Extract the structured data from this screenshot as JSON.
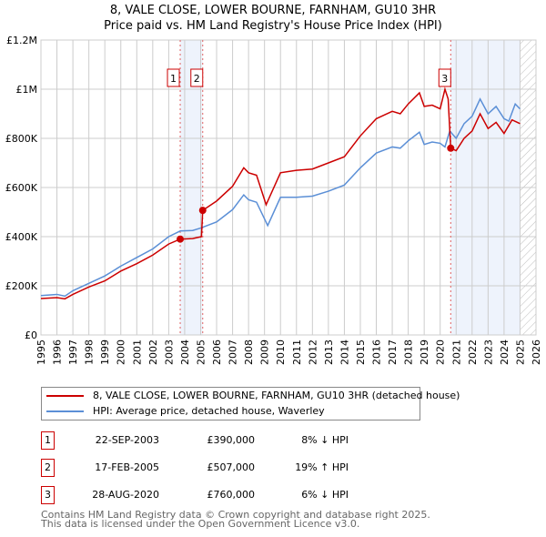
{
  "chart_data": {
    "type": "line",
    "title": "8, VALE CLOSE, LOWER BOURNE, FARNHAM, GU10 3HR",
    "subtitle": "Price paid vs. HM Land Registry's House Price Index (HPI)",
    "xlim": [
      1995,
      2026
    ],
    "ylim": [
      0,
      1200000
    ],
    "yticks": [
      {
        "v": 0,
        "label": "£0"
      },
      {
        "v": 200000,
        "label": "£200K"
      },
      {
        "v": 400000,
        "label": "£400K"
      },
      {
        "v": 600000,
        "label": "£600K"
      },
      {
        "v": 800000,
        "label": "£800K"
      },
      {
        "v": 1000000,
        "label": "£1M"
      },
      {
        "v": 1200000,
        "label": "£1.2M"
      }
    ],
    "xticks": [
      "1995",
      "1996",
      "1997",
      "1998",
      "1999",
      "2000",
      "2001",
      "2002",
      "2003",
      "2004",
      "2005",
      "2006",
      "2007",
      "2008",
      "2009",
      "2010",
      "2011",
      "2012",
      "2013",
      "2014",
      "2015",
      "2016",
      "2017",
      "2018",
      "2019",
      "2020",
      "2021",
      "2022",
      "2023",
      "2024",
      "2025",
      "2026"
    ],
    "grid": true,
    "shaded_periods": [
      [
        2003.72,
        2005.13
      ],
      [
        2020.66,
        2025.0
      ]
    ],
    "forecast_hatch_from": 2025.0,
    "series": [
      {
        "name": "8, VALE CLOSE, LOWER BOURNE, FARNHAM, GU10 3HR (detached house)",
        "color": "#cc0000",
        "x": [
          1995,
          1996,
          1996.5,
          1997,
          1998,
          1999,
          2000,
          2001,
          2002,
          2003,
          2003.72,
          2004.5,
          2005.05,
          2005.13,
          2006,
          2007,
          2007.7,
          2008,
          2008.5,
          2009.1,
          2010,
          2011,
          2012,
          2013,
          2014,
          2015,
          2016,
          2017,
          2017.5,
          2018,
          2018.7,
          2019,
          2019.5,
          2020,
          2020.3,
          2020.5,
          2020.66,
          2021,
          2021.5,
          2022,
          2022.5,
          2023,
          2023.5,
          2024,
          2024.5,
          2025
        ],
        "y": [
          148000,
          152000,
          147000,
          165000,
          195000,
          220000,
          260000,
          290000,
          325000,
          370000,
          390000,
          392000,
          400000,
          507000,
          545000,
          605000,
          680000,
          660000,
          650000,
          530000,
          660000,
          670000,
          675000,
          700000,
          725000,
          810000,
          880000,
          910000,
          900000,
          940000,
          985000,
          930000,
          935000,
          920000,
          1000000,
          960000,
          760000,
          750000,
          800000,
          830000,
          900000,
          840000,
          865000,
          820000,
          875000,
          860000
        ]
      },
      {
        "name": "HPI: Average price, detached house, Waverley",
        "color": "#5b8fd6",
        "x": [
          1995,
          1996,
          1996.5,
          1997,
          1998,
          1999,
          2000,
          2001,
          2002,
          2003,
          2003.72,
          2004.5,
          2005,
          2006,
          2007,
          2007.7,
          2008,
          2008.5,
          2009.2,
          2010,
          2011,
          2012,
          2013,
          2014,
          2015,
          2016,
          2017,
          2017.5,
          2018,
          2018.7,
          2019,
          2019.5,
          2020,
          2020.3,
          2020.6,
          2021,
          2021.5,
          2022,
          2022.5,
          2023,
          2023.5,
          2024,
          2024.3,
          2024.7,
          2025
        ],
        "y": [
          160000,
          165000,
          158000,
          180000,
          210000,
          240000,
          280000,
          315000,
          350000,
          400000,
          423000,
          425000,
          435000,
          460000,
          510000,
          570000,
          550000,
          540000,
          445000,
          560000,
          560000,
          565000,
          585000,
          610000,
          680000,
          740000,
          765000,
          760000,
          790000,
          825000,
          775000,
          785000,
          780000,
          765000,
          830000,
          800000,
          860000,
          890000,
          960000,
          900000,
          930000,
          880000,
          870000,
          940000,
          920000
        ]
      }
    ],
    "sales": [
      {
        "n": "1",
        "x": 2003.72,
        "y": 390000,
        "date": "22-SEP-2003",
        "price": "£390,000",
        "hpi": "8% ↓ HPI"
      },
      {
        "n": "2",
        "x": 2005.13,
        "y": 507000,
        "date": "17-FEB-2005",
        "price": "£507,000",
        "hpi": "19% ↑ HPI"
      },
      {
        "n": "3",
        "x": 2020.66,
        "y": 760000,
        "date": "28-AUG-2020",
        "price": "£760,000",
        "hpi": "6% ↓ HPI"
      }
    ]
  },
  "footer": {
    "line1": "Contains HM Land Registry data © Crown copyright and database right 2025.",
    "line2": "This data is licensed under the Open Government Licence v3.0."
  }
}
